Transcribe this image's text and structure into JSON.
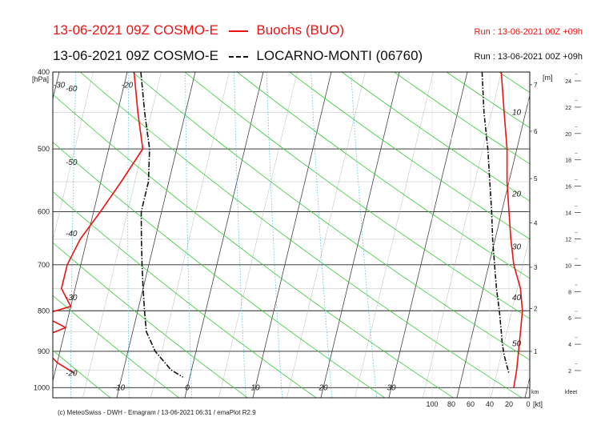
{
  "header": {
    "line1_run": "13-06-2021 09Z COSMO-E",
    "line1_station": "Buochs (BUO)",
    "line1_right": "Run : 13-06-2021 00Z +09h",
    "line2_run": "13-06-2021 09Z COSMO-E",
    "line2_station": "LOCARNO-MONTI (06760)",
    "line2_right": "Run : 13-06-2021 00Z +09h"
  },
  "footer": "(c) MeteoSwiss - DWH - Emagram / 13-06-2021  06:31 / emaPlot R2.9",
  "colors": {
    "red": "#ee1111",
    "black": "#111111",
    "dry_adiabat": "#33cc33",
    "mixing_ratio": "#33bbdd",
    "isotherm": "#555555"
  },
  "chart_data": {
    "type": "line",
    "title": "",
    "pressure_label": "[hPa]",
    "pressure_ticks": [
      400,
      500,
      600,
      700,
      800,
      900,
      1000
    ],
    "plim": [
      1030,
      400
    ],
    "temperature_ticks": [
      -10,
      0,
      10,
      20,
      30
    ],
    "isotherm_labels": [
      -60,
      -50,
      -40,
      -30,
      -20,
      -10,
      0,
      10,
      20,
      30
    ],
    "tlim": [
      -70,
      35
    ],
    "height_m_label": "[m]",
    "height_m_ticks": [
      1,
      2,
      3,
      4,
      5,
      6,
      7
    ],
    "height_km_label": "km",
    "height_kfeet_label": "kfeet",
    "height_kfeet_ticks": [
      2,
      4,
      6,
      8,
      10,
      12,
      14,
      16,
      18,
      20,
      22,
      24
    ],
    "mixing_ratio_labels": [
      10,
      20,
      30,
      40,
      50
    ],
    "wind_label": "[kt]",
    "wind_ticks": [
      100,
      80,
      60,
      40,
      20,
      0
    ],
    "wind_lim": [
      100,
      0
    ],
    "series": [
      {
        "name": "Buochs (BUO)",
        "kind": "temperature",
        "points": [
          [
            400,
            -19
          ],
          [
            450,
            -17
          ],
          [
            500,
            -15
          ],
          [
            550,
            -17
          ],
          [
            600,
            -19
          ],
          [
            650,
            -21
          ],
          [
            700,
            -22
          ],
          [
            750,
            -22
          ],
          [
            790,
            -20
          ],
          [
            810,
            -24
          ],
          [
            840,
            -20
          ],
          [
            870,
            -24
          ],
          [
            900,
            -22
          ],
          [
            930,
            -20
          ],
          [
            960,
            -17
          ]
        ]
      },
      {
        "name": "Buochs (BUO)",
        "kind": "dewpoint",
        "points": [
          [
            400,
            -56
          ],
          [
            430,
            -56
          ],
          [
            460,
            -58
          ],
          [
            490,
            -61
          ],
          [
            520,
            -63
          ],
          [
            550,
            -61
          ],
          [
            580,
            -53
          ],
          [
            620,
            -45
          ],
          [
            660,
            -40
          ],
          [
            690,
            -38
          ],
          [
            720,
            -38
          ],
          [
            760,
            -40
          ],
          [
            790,
            -38
          ],
          [
            810,
            -32
          ],
          [
            840,
            -33
          ],
          [
            880,
            -30
          ],
          [
            920,
            -28
          ],
          [
            960,
            -28
          ]
        ]
      },
      {
        "name": "LOCARNO-MONTI (06760)",
        "kind": "temperature",
        "points": [
          [
            400,
            -18
          ],
          [
            450,
            -16
          ],
          [
            500,
            -14
          ],
          [
            550,
            -13
          ],
          [
            600,
            -13
          ],
          [
            650,
            -12
          ],
          [
            700,
            -11
          ],
          [
            750,
            -10
          ],
          [
            800,
            -9
          ],
          [
            850,
            -8
          ],
          [
            900,
            -6
          ],
          [
            950,
            -3
          ],
          [
            970,
            -1
          ]
        ]
      },
      {
        "name": "LOCARNO-MONTI (06760)",
        "kind": "dewpoint",
        "points": [
          [
            400,
            -57
          ],
          [
            450,
            -58
          ],
          [
            480,
            -60
          ],
          [
            520,
            -59
          ],
          [
            560,
            -54
          ],
          [
            600,
            -48
          ],
          [
            640,
            -44
          ],
          [
            680,
            -39
          ],
          [
            720,
            -37
          ],
          [
            760,
            -36
          ],
          [
            800,
            -35
          ],
          [
            850,
            -34
          ],
          [
            900,
            -33
          ],
          [
            950,
            -31
          ],
          [
            970,
            -30
          ]
        ]
      },
      {
        "name": "Buochs (BUO)",
        "kind": "wind_speed_profile",
        "points": [
          [
            400,
            28
          ],
          [
            450,
            25
          ],
          [
            500,
            22
          ],
          [
            550,
            22
          ],
          [
            600,
            20
          ],
          [
            650,
            18
          ],
          [
            700,
            15
          ],
          [
            750,
            8
          ],
          [
            800,
            6
          ],
          [
            850,
            8
          ],
          [
            900,
            10
          ],
          [
            950,
            12
          ],
          [
            1000,
            15
          ]
        ]
      },
      {
        "name": "LOCARNO-MONTI (06760)",
        "kind": "wind_speed_profile",
        "points": [
          [
            400,
            48
          ],
          [
            450,
            46
          ],
          [
            500,
            42
          ],
          [
            550,
            40
          ],
          [
            600,
            38
          ],
          [
            650,
            37
          ],
          [
            700,
            35
          ],
          [
            750,
            33
          ],
          [
            800,
            30
          ],
          [
            850,
            28
          ],
          [
            880,
            27
          ],
          [
            910,
            25
          ],
          [
            930,
            23
          ],
          [
            960,
            20
          ]
        ]
      }
    ]
  }
}
